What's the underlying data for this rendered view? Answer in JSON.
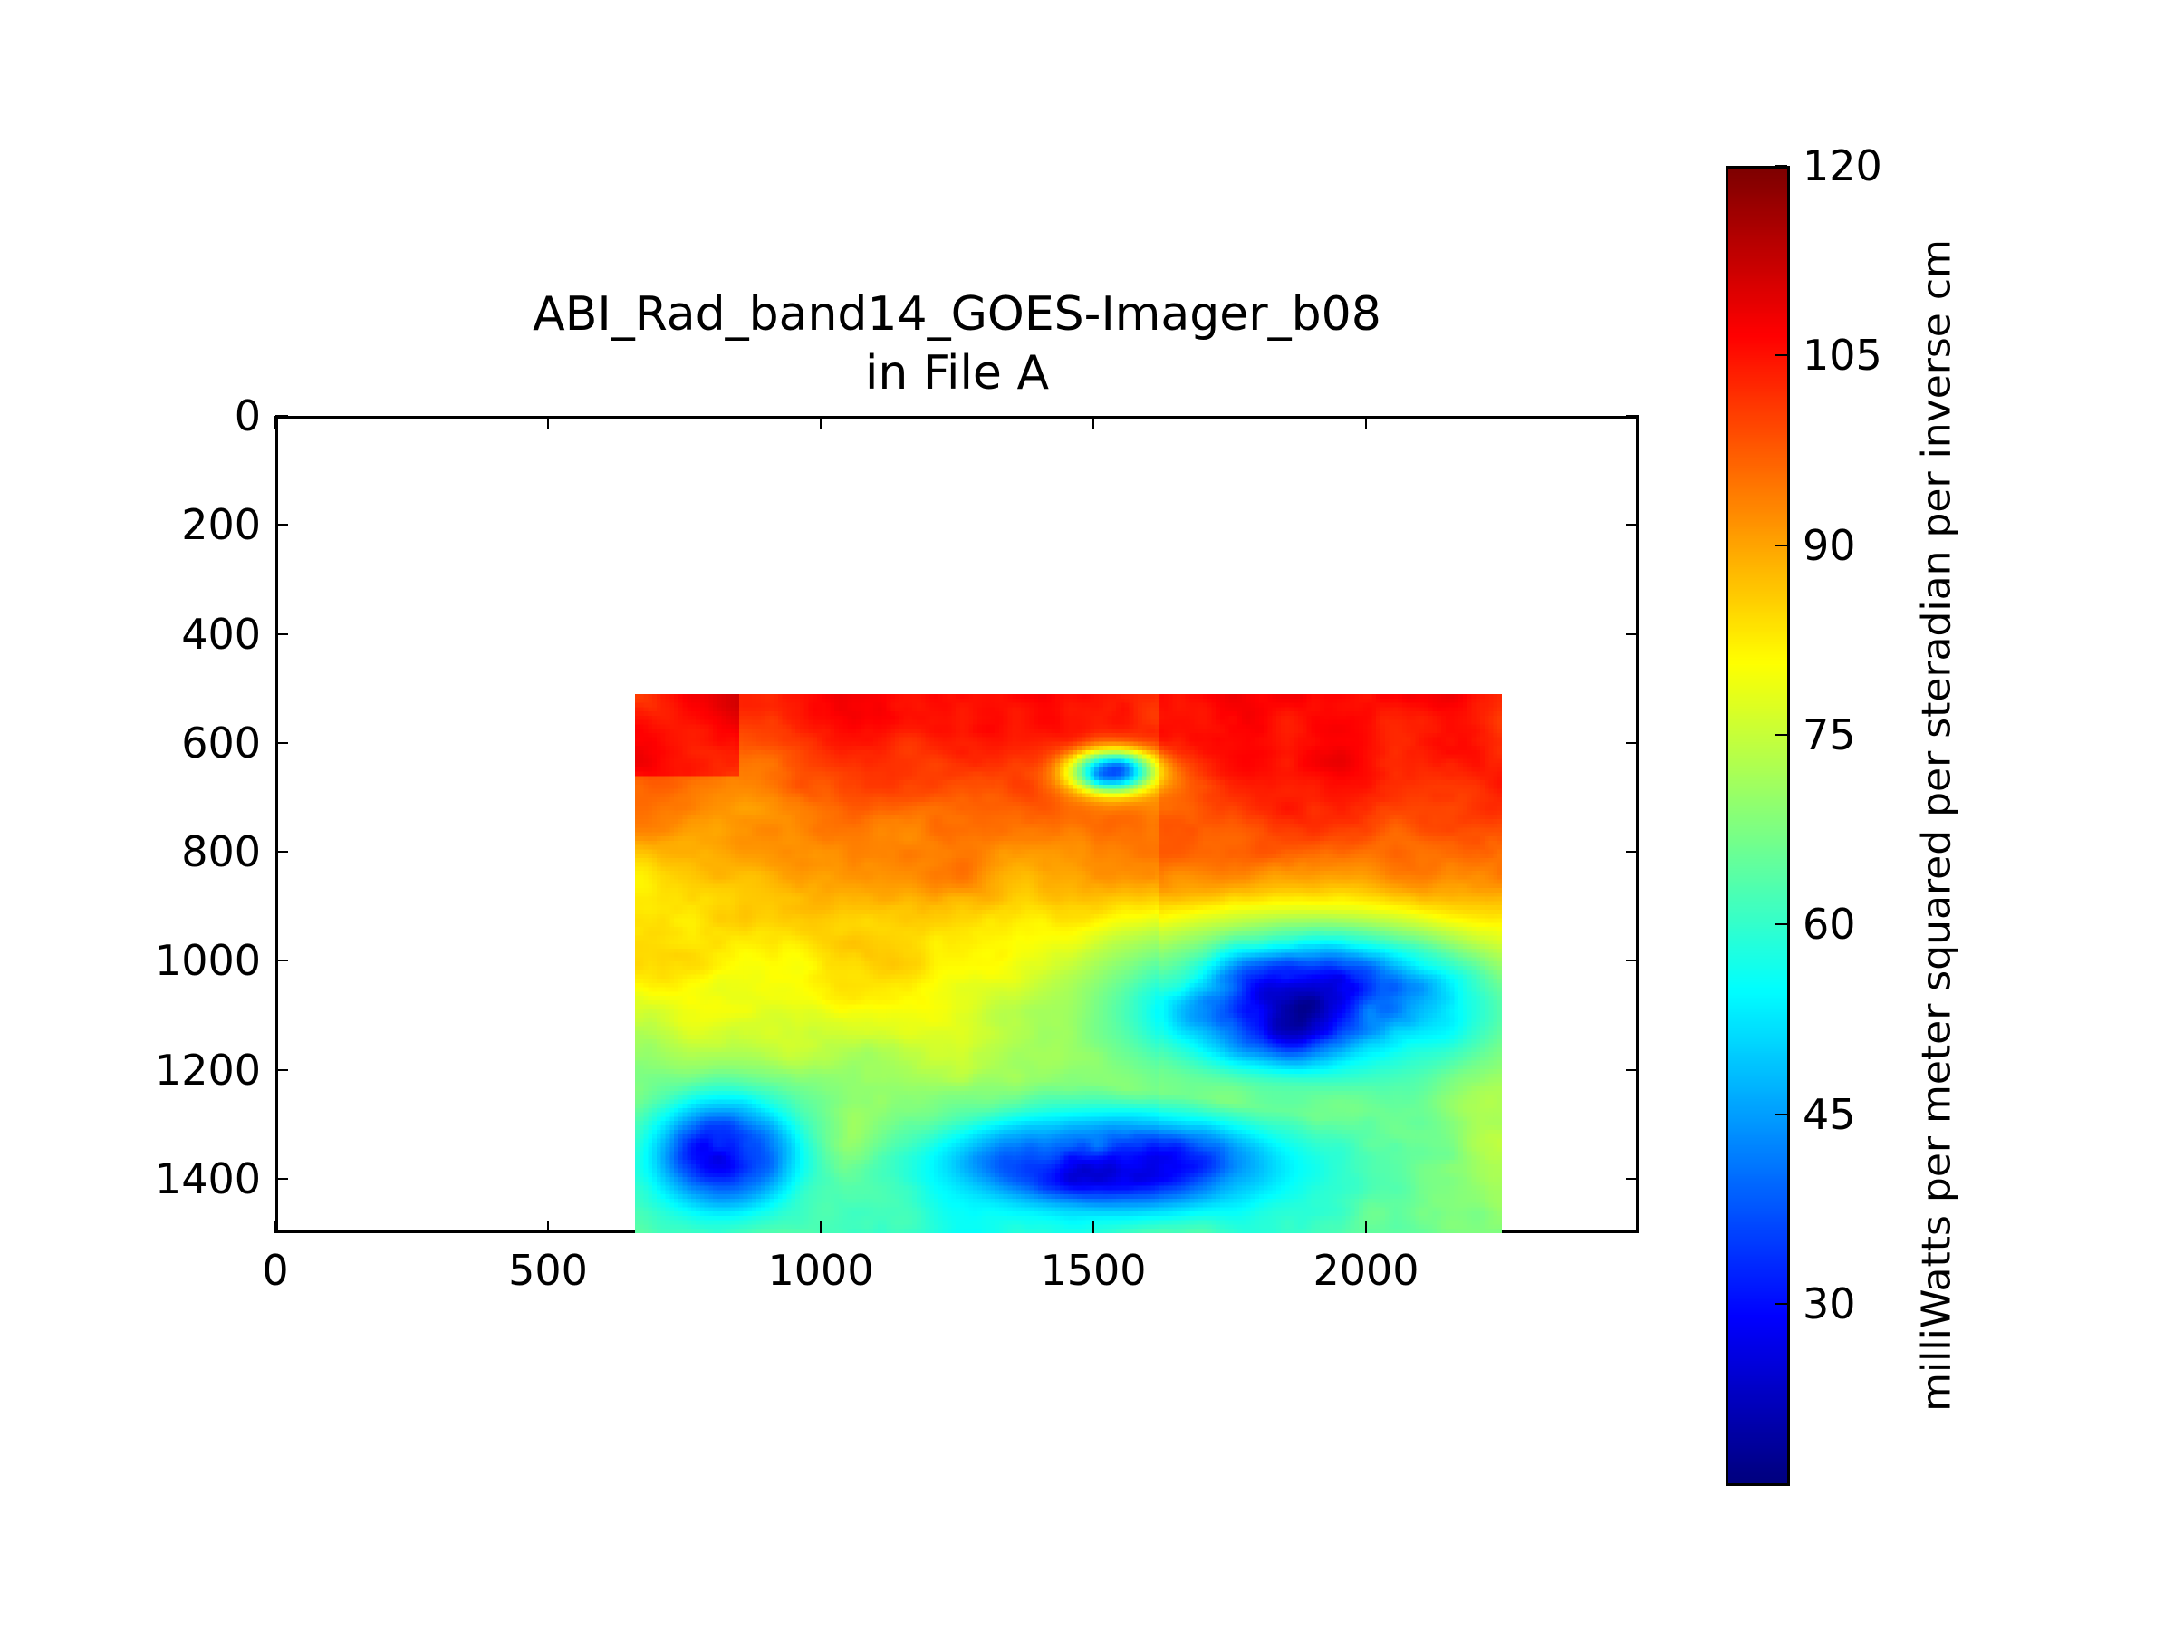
{
  "chart_data": {
    "type": "heatmap",
    "title": [
      "ABI_Rad_band14_GOES-Imager_b08",
      "in File A"
    ],
    "xlim": [
      0,
      2500
    ],
    "ylim": [
      1500,
      0
    ],
    "x_ticks": [
      "0",
      "500",
      "1000",
      "1500",
      "2000"
    ],
    "x_tick_values": [
      0,
      500,
      1000,
      1500,
      2000
    ],
    "y_ticks": [
      "0",
      "200",
      "400",
      "600",
      "800",
      "1000",
      "1200",
      "1400"
    ],
    "y_tick_values": [
      0,
      200,
      400,
      600,
      800,
      1000,
      1200,
      1400
    ],
    "image_extent": {
      "x": [
        660,
        2250
      ],
      "y": [
        510,
        1500
      ]
    },
    "colormap": "jet",
    "colorbar": {
      "range": [
        15.6,
        120
      ],
      "ticks": [
        "30",
        "45",
        "60",
        "75",
        "90",
        "105",
        "120"
      ],
      "tick_values": [
        30,
        45,
        60,
        75,
        90,
        105,
        120
      ],
      "label": "milliWatts per meter squared per steradian per inverse cm"
    }
  }
}
